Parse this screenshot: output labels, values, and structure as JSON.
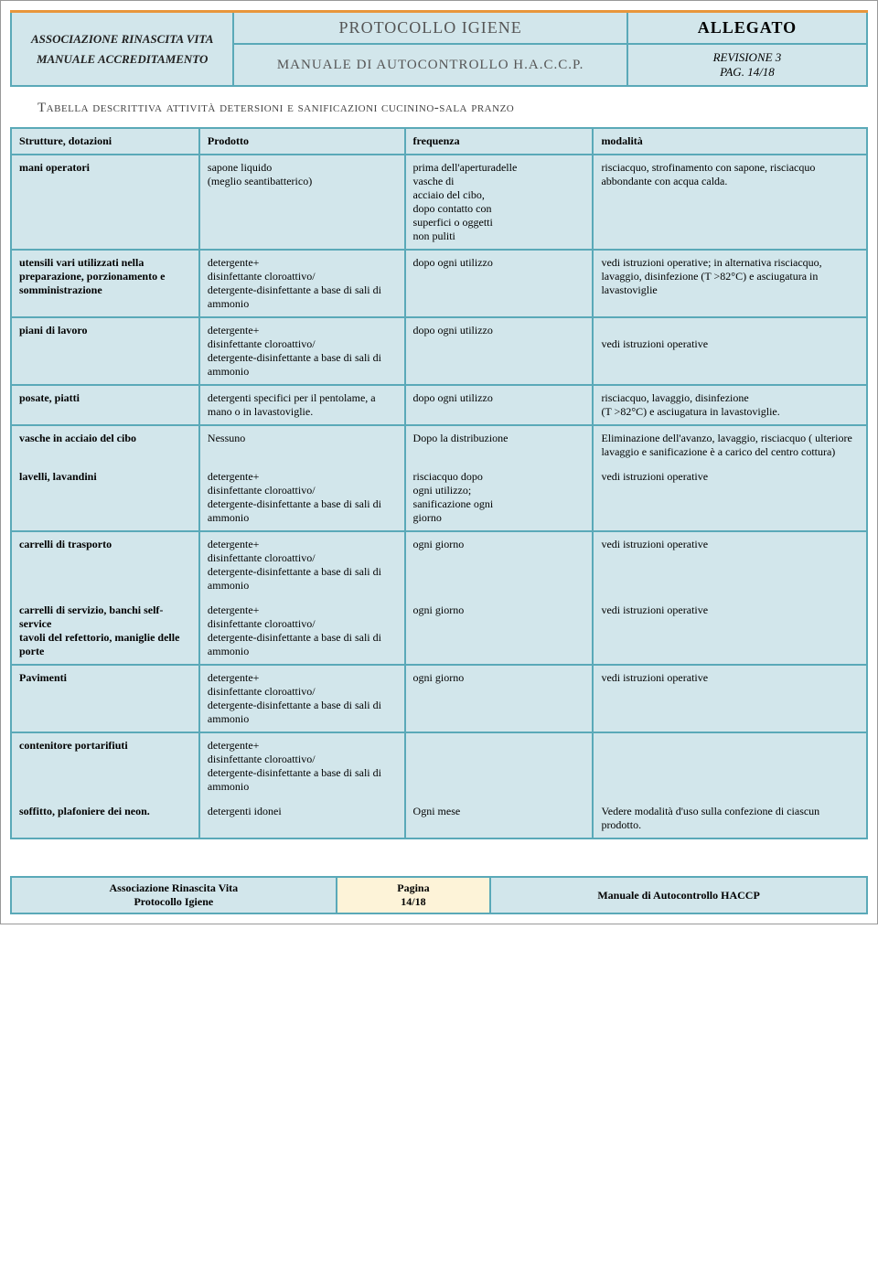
{
  "header": {
    "org": "ASSOCIAZIONE RINASCITA VITA",
    "doc_type": "MANUALE ACCREDITAMENTO",
    "protocol": "PROTOCOLLO IGIENE",
    "allegato": "ALLEGATO",
    "manual": "MANUALE DI AUTOCONTROLLO H.A.C.C.P.",
    "revision": "REVISIONE 3",
    "page": "PAG. 14/18"
  },
  "section_title": "Tabella descrittiva attività detersioni e sanificazioni cucinino-sala pranzo",
  "columns": [
    "Strutture, dotazioni",
    "Prodotto",
    "frequenza",
    "modalità"
  ],
  "rows": [
    {
      "c1": "mani operatori",
      "c2": "sapone liquido\n(meglio seantibatterico)",
      "c3": "  prima dell'aperturadelle\n    vasche di\nacciaio del cibo,\ndopo contatto con\nsuperfici o oggetti\nnon puliti",
      "c4": "risciacquo, strofinamento con sapone, risciacquo abbondante con acqua calda.",
      "sep": true
    },
    {
      "c1": "utensili vari utilizzati nella preparazione, porzionamento e somministrazione",
      "c2": "detergente+\ndisinfettante cloroattivo/\ndetergente-disinfettante a base di sali di ammonio",
      "c3": "dopo ogni utilizzo",
      "c4": "vedi istruzioni operative; in alternativa risciacquo, lavaggio, disinfezione (T >82°C) e asciugatura in lavastoviglie",
      "sep": true
    },
    {
      "c1": "piani di lavoro",
      "c2": "detergente+\ndisinfettante cloroattivo/\ndetergente-disinfettante a base di sali di ammonio",
      "c3": "dopo ogni utilizzo",
      "c4": "\nvedi istruzioni operative",
      "sep": true
    },
    {
      "c1": "posate, piatti",
      "c2": "detergenti specifici per il pentolame, a mano o in lavastoviglie.",
      "c3": "dopo ogni utilizzo",
      "c4": "risciacquo, lavaggio, disinfezione\n(T >82°C) e asciugatura in lavastoviglie.",
      "sep": true
    },
    {
      "c1": "vasche in acciaio del cibo",
      "c2": "Nessuno",
      "c3": "Dopo la distribuzione",
      "c4": "Eliminazione dell'avanzo, lavaggio, risciacquo ( ulteriore lavaggio e sanificazione  è a carico del centro cottura)",
      "sep": true,
      "group_top": true
    },
    {
      "c1": "lavelli, lavandini",
      "c2": "detergente+\ndisinfettante cloroattivo/\ndetergente-disinfettante a base di sali di ammonio",
      "c3": "risciacquo dopo\nogni utilizzo;\nsanificazione ogni\ngiorno",
      "c4": "vedi istruzioni operative",
      "group_bottom": true
    },
    {
      "c1": "carrelli di trasporto",
      "c2": "detergente+\ndisinfettante cloroattivo/\ndetergente-disinfettante a base di sali di ammonio",
      "c3": "ogni giorno",
      "c4": "vedi istruzioni operative",
      "sep": true,
      "group_top": true
    },
    {
      "c1": "carrelli di servizio, banchi self-service\ntavoli del refettorio, maniglie delle porte",
      "c2": "detergente+\ndisinfettante cloroattivo/\ndetergente-disinfettante a base di sali di ammonio",
      "c3": "ogni giorno",
      "c4": "vedi istruzioni operative",
      "group_bottom": true
    },
    {
      "c1": "Pavimenti",
      "c2": "detergente+\ndisinfettante cloroattivo/\ndetergente-disinfettante a base di sali di ammonio",
      "c3": "ogni giorno",
      "c4": "vedi istruzioni operative",
      "sep": true
    },
    {
      "c1": "contenitore portarifiuti",
      "c2": "detergente+\ndisinfettante cloroattivo/\ndetergente-disinfettante a base di sali di ammonio",
      "c3": "",
      "c4": "",
      "sep": true,
      "group_top": true
    },
    {
      "c1": "soffitto, plafoniere dei neon.",
      "c2": "detergenti idonei",
      "c3": "Ogni mese",
      "c4": "Vedere modalità d'uso sulla confezione di ciascun prodotto.",
      "group_bottom": true
    }
  ],
  "footer": {
    "left1": "Associazione Rinascita Vita",
    "left2": "Protocollo Igiene",
    "mid1": "Pagina",
    "mid2": "14/18",
    "right": "Manuale di Autocontrollo HACCP"
  },
  "colors": {
    "border": "#5aa9b8",
    "bg": "#d2e6eb",
    "orange": "#e8963b",
    "footer_mid_bg": "#fdf3d8"
  }
}
